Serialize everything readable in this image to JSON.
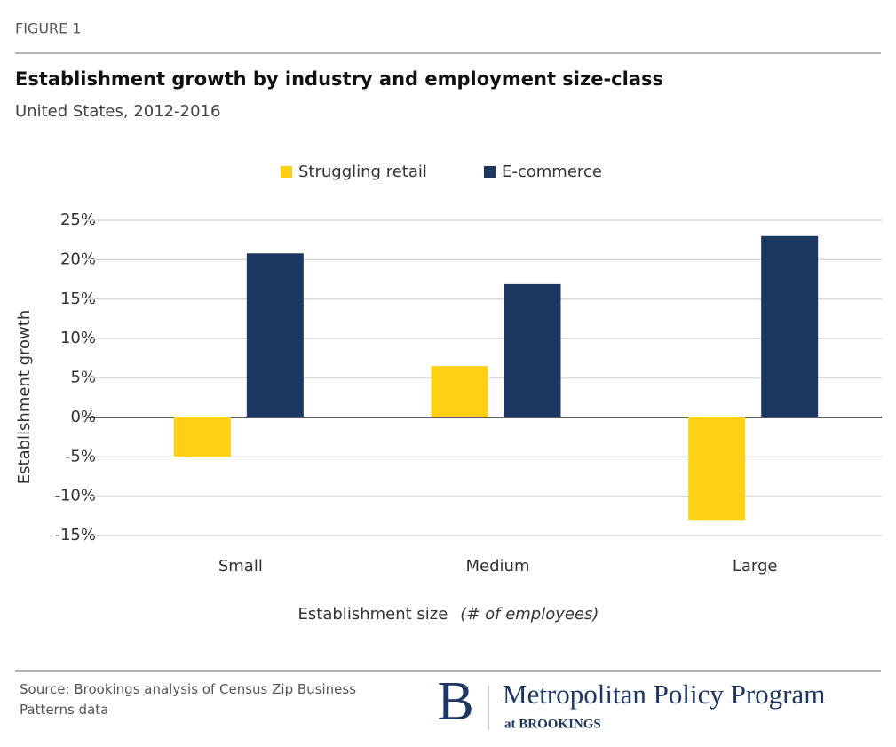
{
  "header": {
    "figure": "FIGURE 1"
  },
  "chart_data": {
    "type": "bar",
    "title": "Establishment growth by industry and employment size-class",
    "subtitle": "United States, 2012-2016",
    "ylabel": "Establishment growth",
    "xlabel": "Establishment size",
    "xlabel_note": "(# of employees)",
    "categories": [
      "Small",
      "Medium",
      "Large"
    ],
    "series": [
      {
        "name": "Struggling retail",
        "color": "#FFD014",
        "values": [
          -5,
          6.5,
          -13
        ]
      },
      {
        "name": "E-commerce",
        "color": "#1D3763",
        "values": [
          20.8,
          16.9,
          23
        ]
      }
    ],
    "ylim": [
      -15,
      25
    ],
    "yticks": [
      {
        "value": -15,
        "label": "-15%"
      },
      {
        "value": -10,
        "label": "-10%"
      },
      {
        "value": -5,
        "label": "-5%"
      },
      {
        "value": 0,
        "label": "0%"
      },
      {
        "value": 5,
        "label": "5%"
      },
      {
        "value": 10,
        "label": "10%"
      },
      {
        "value": 15,
        "label": "15%"
      },
      {
        "value": 20,
        "label": "20%"
      },
      {
        "value": 25,
        "label": "25%"
      }
    ],
    "grid": true,
    "legend": "top"
  },
  "footer": {
    "source": "Source: Brookings analysis of Census Zip Business Patterns data",
    "logo_letter": "B",
    "program": "Metropolitan Policy Program",
    "affiliation": "at BROOKINGS"
  }
}
